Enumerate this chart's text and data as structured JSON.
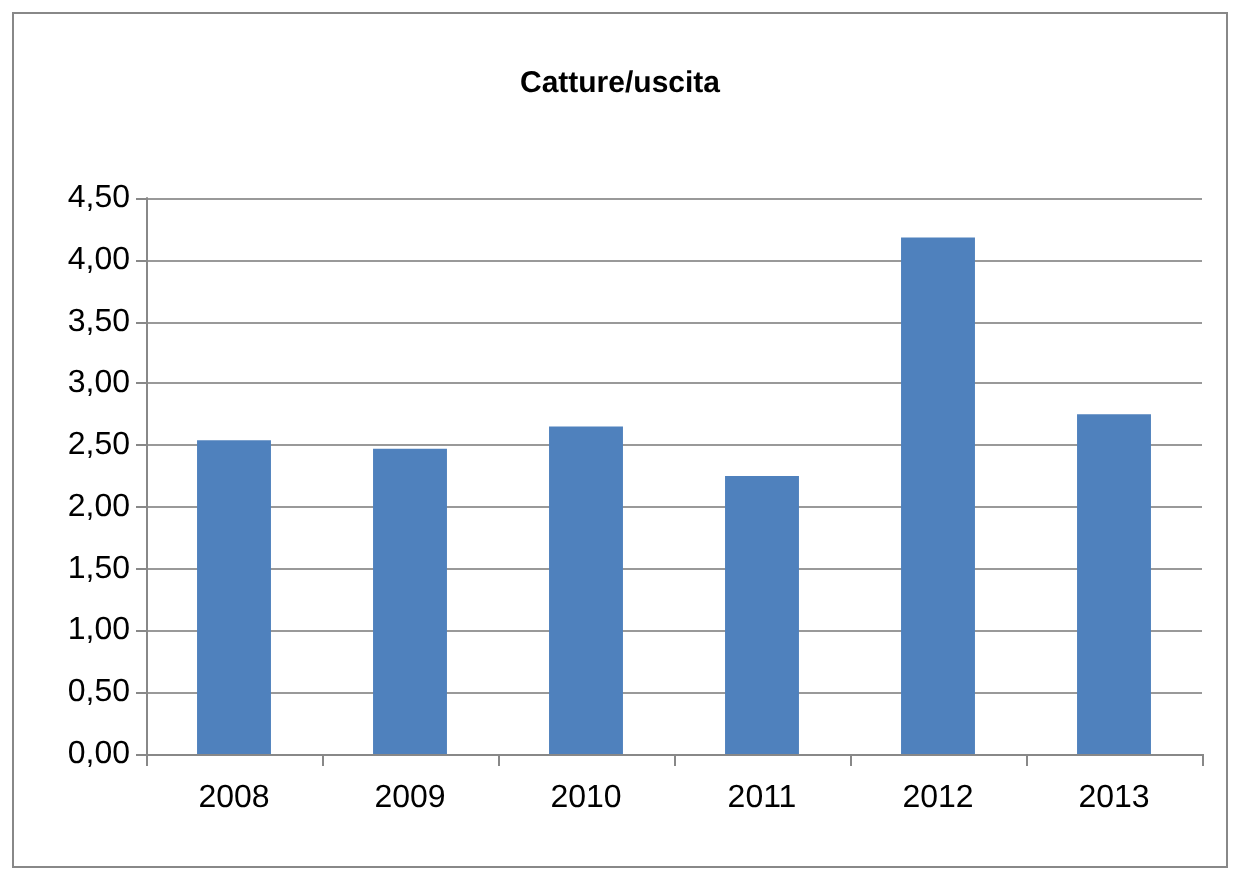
{
  "chart_data": {
    "type": "bar",
    "title": "Catture/uscita",
    "categories": [
      "2008",
      "2009",
      "2010",
      "2011",
      "2012",
      "2013"
    ],
    "values": [
      2.54,
      2.47,
      2.65,
      2.25,
      4.18,
      2.75
    ],
    "color": "#4f81bd",
    "ylim": [
      0,
      4.5
    ],
    "yticks": [
      {
        "value": 0,
        "label": "0,00"
      },
      {
        "value": 0.5,
        "label": "0,50"
      },
      {
        "value": 1,
        "label": "1,00"
      },
      {
        "value": 1.5,
        "label": "1,50"
      },
      {
        "value": 2,
        "label": "2,00"
      },
      {
        "value": 2.5,
        "label": "2,50"
      },
      {
        "value": 3,
        "label": "3,00"
      },
      {
        "value": 3.5,
        "label": "3,50"
      },
      {
        "value": 4,
        "label": "4,00"
      },
      {
        "value": 4.5,
        "label": "4,50"
      }
    ],
    "grid": "y"
  }
}
